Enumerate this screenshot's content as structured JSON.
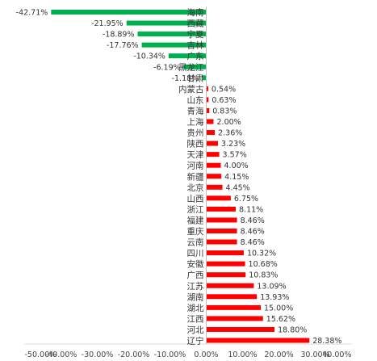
{
  "chart_data": {
    "type": "bar",
    "orientation": "horizontal",
    "title": "",
    "xlabel": "",
    "ylabel": "",
    "xlim": [
      -0.5,
      0.4
    ],
    "x_ticks": [
      "-50.00%",
      "-40.00%",
      "-30.00%",
      "-20.00%",
      "-10.00%",
      "0.00%",
      "10.00%",
      "20.00%",
      "30.00%",
      "40.00%"
    ],
    "x_tick_values": [
      -0.5,
      -0.4,
      -0.3,
      -0.2,
      -0.1,
      0,
      0.1,
      0.2,
      0.3,
      0.4
    ],
    "grid": false,
    "legend": "none",
    "colors": {
      "negative": "#00b050",
      "positive": "#ff0000"
    },
    "categories": [
      "海南",
      "西藏",
      "宁夏",
      "吉林",
      "广东",
      "黑龙江",
      "甘肃",
      "内蒙古",
      "山东",
      "青海",
      "上海",
      "贵州",
      "陕西",
      "天津",
      "河南",
      "新疆",
      "北京",
      "山西",
      "浙江",
      "福建",
      "重庆",
      "云南",
      "四川",
      "安徽",
      "广西",
      "江苏",
      "湖南",
      "湖北",
      "江西",
      "河北",
      "辽宁"
    ],
    "values": [
      -0.4271,
      -0.2195,
      -0.1889,
      -0.1776,
      -0.1034,
      -0.0619,
      -0.0118,
      0.0054,
      0.0063,
      0.0083,
      0.02,
      0.0236,
      0.0323,
      0.0357,
      0.04,
      0.0415,
      0.0445,
      0.0675,
      0.0811,
      0.0846,
      0.0846,
      0.0846,
      0.1032,
      0.1068,
      0.1083,
      0.1309,
      0.1393,
      0.15,
      0.1562,
      0.188,
      0.2838
    ],
    "data_labels": [
      "-42.71%",
      "-21.95%",
      "-18.89%",
      "-17.76%",
      "-10.34%",
      "-6.19%",
      "-1.18%",
      "0.54%",
      "0.63%",
      "0.83%",
      "2.00%",
      "2.36%",
      "3.23%",
      "3.57%",
      "4.00%",
      "4.15%",
      "4.45%",
      "6.75%",
      "8.11%",
      "8.46%",
      "8.46%",
      "8.46%",
      "10.32%",
      "10.68%",
      "10.83%",
      "13.09%",
      "13.93%",
      "15.00%",
      "15.62%",
      "18.80%",
      "28.38%"
    ]
  }
}
